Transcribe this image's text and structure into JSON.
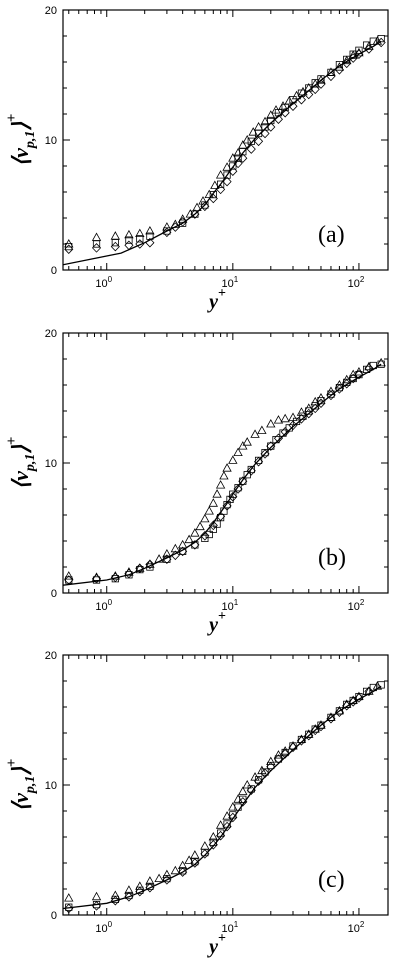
{
  "chart_data": [
    {
      "type": "scatter",
      "panel_label": "(a)",
      "xlabel": "y",
      "xlabel_sup": "+",
      "ylabel_main": "⟨v",
      "ylabel_sub": "p,1",
      "ylabel_close": "⟩",
      "ylabel_sup": "+",
      "xscale": "log",
      "xlim": [
        0.45,
        170
      ],
      "ylim": [
        0,
        20
      ],
      "x_ticks": [
        {
          "value": 1,
          "label": "10",
          "exp": "0"
        },
        {
          "value": 10,
          "label": "10",
          "exp": "1"
        },
        {
          "value": 100,
          "label": "10",
          "exp": "2"
        }
      ],
      "y_ticks": [
        {
          "value": 0,
          "label": "0"
        },
        {
          "value": 10,
          "label": "10"
        },
        {
          "value": 20,
          "label": "20"
        }
      ],
      "grid": false,
      "series": [
        {
          "marker": "line",
          "x": [
            0.45,
            1.3,
            2,
            3,
            4,
            5,
            6,
            7,
            8,
            9,
            10,
            12,
            15,
            20,
            30,
            40,
            50,
            70,
            100,
            130,
            150
          ],
          "y": [
            0.4,
            1.3,
            2.1,
            3.0,
            3.6,
            4.3,
            5.0,
            5.9,
            6.6,
            7.3,
            7.9,
            9.0,
            10.1,
            11.3,
            12.8,
            13.8,
            14.6,
            15.7,
            16.6,
            17.2,
            17.6
          ]
        },
        {
          "marker": "triangle",
          "x": [
            0.5,
            0.83,
            1.17,
            1.5,
            1.83,
            2.2,
            3,
            3.5,
            4,
            4.6,
            5.2,
            5.8,
            6.5,
            7.2,
            8,
            9,
            10,
            11,
            12,
            13,
            14.5,
            16,
            18,
            20,
            22,
            25,
            28,
            32,
            36,
            40,
            45,
            50,
            60,
            70,
            80,
            90,
            100,
            120,
            140
          ],
          "y": [
            2.0,
            2.5,
            2.6,
            2.7,
            2.8,
            3.0,
            3.3,
            3.5,
            3.9,
            4.3,
            4.8,
            5.3,
            5.8,
            6.5,
            7.3,
            7.9,
            8.6,
            9.0,
            9.6,
            10.0,
            10.6,
            11.0,
            11.4,
            11.9,
            12.3,
            12.6,
            13.0,
            13.4,
            13.7,
            14.0,
            14.3,
            14.6,
            15.2,
            15.6,
            16.1,
            16.5,
            16.7,
            17.2,
            17.6
          ]
        },
        {
          "marker": "square",
          "x": [
            0.5,
            0.83,
            1.17,
            1.5,
            1.83,
            2.2,
            3,
            4,
            5,
            6,
            7,
            8,
            9,
            10,
            11,
            12,
            14,
            16,
            18,
            20,
            23,
            26,
            30,
            35,
            40,
            45,
            50,
            60,
            70,
            80,
            90,
            100,
            115,
            130,
            150
          ],
          "y": [
            1.8,
            2.0,
            2.1,
            2.3,
            2.4,
            2.6,
            3.0,
            3.6,
            4.3,
            5.0,
            5.8,
            6.6,
            7.3,
            8.0,
            8.6,
            9.1,
            9.9,
            10.5,
            11.0,
            11.5,
            12.1,
            12.5,
            13.1,
            13.6,
            14.0,
            14.4,
            14.7,
            15.2,
            15.8,
            16.2,
            16.6,
            16.9,
            17.3,
            17.6,
            17.8
          ]
        },
        {
          "marker": "diamond",
          "x": [
            0.5,
            0.83,
            1.17,
            1.5,
            1.83,
            2.2,
            3,
            3.5,
            4,
            5,
            6,
            7,
            8,
            9,
            10,
            11,
            12,
            14,
            16,
            18,
            20,
            23,
            26,
            30,
            35,
            40,
            45,
            50,
            60,
            70,
            80,
            90,
            100,
            120,
            150
          ],
          "y": [
            1.6,
            1.7,
            1.8,
            1.9,
            2.0,
            2.1,
            2.9,
            3.3,
            3.7,
            4.3,
            4.9,
            5.5,
            6.2,
            6.8,
            7.6,
            8.2,
            8.6,
            9.3,
            9.9,
            10.5,
            11.0,
            11.6,
            12.1,
            12.6,
            13.1,
            13.5,
            13.9,
            14.3,
            14.9,
            15.4,
            15.9,
            16.3,
            16.6,
            17.0,
            17.5
          ]
        }
      ]
    },
    {
      "type": "scatter",
      "panel_label": "(b)",
      "xlabel": "y",
      "xlabel_sup": "+",
      "ylabel_main": "⟨v",
      "ylabel_sub": "p,1",
      "ylabel_close": "⟩",
      "ylabel_sup": "+",
      "xscale": "log",
      "xlim": [
        0.45,
        170
      ],
      "ylim": [
        0,
        20
      ],
      "x_ticks": [
        {
          "value": 1,
          "label": "10",
          "exp": "0"
        },
        {
          "value": 10,
          "label": "10",
          "exp": "1"
        },
        {
          "value": 100,
          "label": "10",
          "exp": "2"
        }
      ],
      "y_ticks": [
        {
          "value": 0,
          "label": "0"
        },
        {
          "value": 10,
          "label": "10"
        },
        {
          "value": 20,
          "label": "20"
        }
      ],
      "grid": false,
      "series": [
        {
          "marker": "line",
          "x": [
            0.45,
            1,
            1.5,
            2,
            3,
            4,
            5,
            6,
            7,
            8,
            9,
            10,
            12,
            15,
            20,
            30,
            40,
            50,
            70,
            100,
            130,
            150
          ],
          "y": [
            0.6,
            1.0,
            1.4,
            1.9,
            2.7,
            3.3,
            3.9,
            4.6,
            5.4,
            6.2,
            6.9,
            7.6,
            8.7,
            9.9,
            11.2,
            12.8,
            13.8,
            14.6,
            15.7,
            16.6,
            17.2,
            17.6
          ]
        },
        {
          "marker": "triangle",
          "x": [
            0.5,
            0.83,
            1.17,
            1.5,
            1.83,
            2.2,
            2.6,
            3,
            3.5,
            4,
            4.5,
            5,
            5.5,
            6,
            6.5,
            7,
            7.5,
            8,
            8.5,
            9,
            10,
            11,
            12,
            13,
            15,
            17,
            20,
            23,
            26,
            30,
            35,
            40,
            45,
            50,
            60,
            70,
            80,
            90,
            100,
            120,
            150
          ],
          "y": [
            1.3,
            1.2,
            1.3,
            1.6,
            1.9,
            2.2,
            2.6,
            3.0,
            3.4,
            3.7,
            4.1,
            4.6,
            5.1,
            5.7,
            6.3,
            6.9,
            7.6,
            8.3,
            9.0,
            9.6,
            10.2,
            10.8,
            11.3,
            11.6,
            12.2,
            12.5,
            13.0,
            13.3,
            13.4,
            13.5,
            13.9,
            14.2,
            14.7,
            15.0,
            15.5,
            16.0,
            16.4,
            16.8,
            17.0,
            17.4,
            17.7
          ]
        },
        {
          "marker": "square",
          "x": [
            0.5,
            0.83,
            1.17,
            1.5,
            1.83,
            2.2,
            3,
            4,
            5,
            6,
            6.5,
            7,
            7.5,
            8,
            8.5,
            9,
            9.5,
            10,
            11,
            12,
            13,
            14,
            16,
            18,
            20,
            22,
            25,
            28,
            32,
            36,
            40,
            45,
            50,
            60,
            70,
            80,
            90,
            100,
            115,
            130,
            150
          ],
          "y": [
            1.0,
            1.0,
            1.1,
            1.4,
            1.8,
            2.0,
            2.6,
            3.2,
            3.7,
            4.2,
            4.5,
            4.9,
            5.3,
            5.8,
            6.3,
            6.8,
            7.2,
            7.6,
            8.1,
            8.6,
            9.1,
            9.5,
            10.2,
            10.8,
            11.3,
            11.8,
            12.3,
            12.7,
            13.2,
            13.6,
            14.0,
            14.4,
            14.8,
            15.3,
            15.8,
            16.2,
            16.5,
            16.8,
            17.2,
            17.5,
            17.6
          ]
        },
        {
          "marker": "diamond",
          "x": [
            0.5,
            0.83,
            1.17,
            1.5,
            1.83,
            2.2,
            3,
            3.5,
            4,
            5,
            6,
            7,
            8,
            9,
            10,
            11,
            12,
            14,
            16,
            18,
            20,
            23,
            26,
            30,
            35,
            40,
            45,
            50,
            60,
            70,
            80,
            90,
            100,
            120
          ],
          "y": [
            1.0,
            1.1,
            1.2,
            1.5,
            1.9,
            2.2,
            2.6,
            2.9,
            3.2,
            3.7,
            4.4,
            5.2,
            5.9,
            6.7,
            7.4,
            8.0,
            8.6,
            9.4,
            10.1,
            10.7,
            11.3,
            11.9,
            12.4,
            12.9,
            13.4,
            13.8,
            14.2,
            14.6,
            15.2,
            15.7,
            16.1,
            16.5,
            16.8,
            17.3
          ]
        }
      ]
    },
    {
      "type": "scatter",
      "panel_label": "(c)",
      "xlabel": "y",
      "xlabel_sup": "+",
      "ylabel_main": "⟨v",
      "ylabel_sub": "p,1",
      "ylabel_close": "⟩",
      "ylabel_sup": "+",
      "xscale": "log",
      "xlim": [
        0.45,
        170
      ],
      "ylim": [
        0,
        20
      ],
      "x_ticks": [
        {
          "value": 1,
          "label": "10",
          "exp": "0"
        },
        {
          "value": 10,
          "label": "10",
          "exp": "1"
        },
        {
          "value": 100,
          "label": "10",
          "exp": "2"
        }
      ],
      "y_ticks": [
        {
          "value": 0,
          "label": "0"
        },
        {
          "value": 10,
          "label": "10"
        },
        {
          "value": 20,
          "label": "20"
        }
      ],
      "grid": false,
      "series": [
        {
          "marker": "line",
          "x": [
            0.45,
            1,
            1.5,
            2,
            3,
            4,
            5,
            6,
            7,
            8,
            9,
            10,
            12,
            15,
            20,
            30,
            40,
            50,
            70,
            100,
            130,
            150
          ],
          "y": [
            0.5,
            0.9,
            1.4,
            1.9,
            2.7,
            3.3,
            3.9,
            4.6,
            5.3,
            6.0,
            6.7,
            7.4,
            8.5,
            9.8,
            11.1,
            12.7,
            13.8,
            14.6,
            15.7,
            16.6,
            17.2,
            17.6
          ]
        },
        {
          "marker": "triangle",
          "x": [
            0.5,
            0.83,
            1.17,
            1.5,
            1.83,
            2.2,
            2.6,
            3,
            3.5,
            4,
            4.5,
            5,
            6,
            7,
            8,
            9,
            10,
            11,
            12,
            13,
            15,
            17,
            20,
            23,
            26,
            30,
            35,
            40,
            45,
            50,
            60,
            70,
            80,
            90,
            100,
            120,
            140
          ],
          "y": [
            1.3,
            1.4,
            1.5,
            1.9,
            2.2,
            2.6,
            2.8,
            3.1,
            3.4,
            3.8,
            4.2,
            4.6,
            5.3,
            6.0,
            6.9,
            7.6,
            8.3,
            8.9,
            9.5,
            10.0,
            10.6,
            11.1,
            11.8,
            12.3,
            12.6,
            13.0,
            13.5,
            13.9,
            14.3,
            14.6,
            15.2,
            15.7,
            16.2,
            16.5,
            16.8,
            17.2,
            17.6
          ]
        },
        {
          "marker": "square",
          "x": [
            0.5,
            0.83,
            1.17,
            1.5,
            1.83,
            2.2,
            3,
            4,
            5,
            6,
            7,
            8,
            9,
            10,
            11,
            12,
            14,
            16,
            18,
            20,
            23,
            26,
            30,
            35,
            40,
            45,
            50,
            60,
            70,
            80,
            90,
            100,
            115,
            130,
            150
          ],
          "y": [
            0.6,
            0.8,
            1.2,
            1.5,
            1.9,
            2.2,
            2.8,
            3.4,
            4.1,
            4.8,
            5.6,
            6.3,
            7.0,
            7.7,
            8.3,
            8.9,
            9.7,
            10.4,
            11.0,
            11.5,
            12.0,
            12.5,
            13.0,
            13.5,
            13.9,
            14.3,
            14.6,
            15.2,
            15.7,
            16.2,
            16.5,
            16.8,
            17.2,
            17.5,
            17.7
          ]
        },
        {
          "marker": "diamond",
          "x": [
            0.5,
            0.83,
            1.17,
            1.5,
            1.83,
            2.2,
            3,
            4,
            5,
            6,
            7,
            8,
            9,
            10,
            12,
            14,
            16,
            18,
            20,
            23,
            26,
            30,
            35,
            40,
            45,
            50,
            60,
            70,
            80,
            90,
            100,
            120
          ],
          "y": [
            0.5,
            0.7,
            1.1,
            1.4,
            1.8,
            2.1,
            2.7,
            3.3,
            4.0,
            4.7,
            5.4,
            6.1,
            6.8,
            7.5,
            8.7,
            9.6,
            10.3,
            10.9,
            11.4,
            12.0,
            12.4,
            12.9,
            13.4,
            13.8,
            14.2,
            14.5,
            15.1,
            15.6,
            16.1,
            16.4,
            16.7,
            17.2
          ]
        }
      ]
    }
  ]
}
